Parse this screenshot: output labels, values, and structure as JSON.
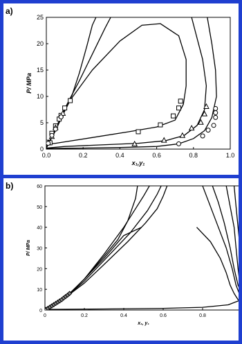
{
  "colors": {
    "frame": "#1f3fd0",
    "line": "#000000",
    "background": "#ffffff"
  },
  "chart_data": [
    {
      "panel": "a)",
      "type": "line",
      "xlabel": "x₁,y₁",
      "ylabel": "P/ MPa",
      "xlim": [
        0,
        1
      ],
      "ylim": [
        0,
        25
      ],
      "xticks": [
        "0.0",
        "0.2",
        "0.4",
        "0.6",
        "0.8",
        "1.0"
      ],
      "yticks": [
        "0",
        "5",
        "10",
        "15",
        "20",
        "25"
      ],
      "grid": false,
      "series": [
        {
          "kind": "line",
          "points": [
            [
              0,
              0.3
            ],
            [
              0.03,
              2.3
            ],
            [
              0.07,
              5.3
            ],
            [
              0.11,
              8.3
            ],
            [
              0.14,
              10.2
            ],
            [
              0.18,
              14.5
            ],
            [
              0.22,
              19.5
            ],
            [
              0.25,
              23.5
            ],
            [
              0.27,
              25
            ]
          ]
        },
        {
          "kind": "line",
          "points": [
            [
              0,
              0.2
            ],
            [
              0.04,
              3.0
            ],
            [
              0.08,
              6.2
            ],
            [
              0.12,
              9.0
            ],
            [
              0.18,
              13.0
            ],
            [
              0.25,
              18.0
            ],
            [
              0.32,
              23.0
            ],
            [
              0.35,
              25
            ]
          ]
        },
        {
          "kind": "line",
          "points": [
            [
              0,
              0.2
            ],
            [
              0.05,
              3.5
            ],
            [
              0.09,
              6.5
            ],
            [
              0.13,
              9.3
            ],
            [
              0.25,
              15.0
            ],
            [
              0.4,
              20.5
            ],
            [
              0.52,
              23.5
            ],
            [
              0.62,
              23.8
            ],
            [
              0.72,
              21.5
            ],
            [
              0.76,
              17.0
            ],
            [
              0.76,
              12.0
            ],
            [
              0.745,
              8.5
            ],
            [
              0.7,
              5.5
            ],
            [
              0.6,
              4.2
            ],
            [
              0.45,
              3.3
            ],
            [
              0.25,
              2.2
            ],
            [
              0.05,
              1.1
            ],
            [
              0,
              0.9
            ]
          ]
        },
        {
          "kind": "line",
          "points": [
            [
              0,
              0.2
            ],
            [
              0.1,
              0.5
            ],
            [
              0.3,
              0.8
            ],
            [
              0.5,
              1.1
            ],
            [
              0.65,
              1.6
            ],
            [
              0.75,
              2.6
            ],
            [
              0.82,
              4.5
            ],
            [
              0.86,
              7.5
            ],
            [
              0.87,
              12.0
            ],
            [
              0.85,
              17.0
            ],
            [
              0.82,
              21.0
            ],
            [
              0.79,
              25
            ]
          ]
        },
        {
          "kind": "line",
          "points": [
            [
              0,
              0.1
            ],
            [
              0.2,
              0.2
            ],
            [
              0.4,
              0.3
            ],
            [
              0.6,
              0.5
            ],
            [
              0.72,
              1.0
            ],
            [
              0.8,
              2.0
            ],
            [
              0.86,
              3.5
            ],
            [
              0.9,
              6.0
            ],
            [
              0.925,
              10.0
            ],
            [
              0.92,
              15.0
            ],
            [
              0.9,
              20.0
            ],
            [
              0.875,
              25
            ]
          ]
        },
        {
          "kind": "squares",
          "points": [
            [
              0.01,
              1.3
            ],
            [
              0.02,
              1.2
            ],
            [
              0.03,
              3.0
            ],
            [
              0.05,
              4.4
            ],
            [
              0.07,
              5.7
            ],
            [
              0.08,
              6.4
            ],
            [
              0.1,
              7.8
            ],
            [
              0.13,
              9.2
            ],
            [
              0.5,
              3.3
            ],
            [
              0.62,
              4.6
            ],
            [
              0.69,
              6.3
            ],
            [
              0.72,
              7.8
            ],
            [
              0.73,
              9.1
            ]
          ]
        },
        {
          "kind": "triangles",
          "points": [
            [
              0.01,
              1.2
            ],
            [
              0.03,
              2.4
            ],
            [
              0.05,
              4.1
            ],
            [
              0.09,
              6.8
            ],
            [
              0.48,
              1.0
            ],
            [
              0.64,
              1.7
            ],
            [
              0.74,
              2.6
            ],
            [
              0.79,
              4.0
            ],
            [
              0.84,
              5.1
            ],
            [
              0.86,
              6.7
            ],
            [
              0.87,
              8.1
            ]
          ]
        },
        {
          "kind": "circles",
          "points": [
            [
              0.01,
              1.1
            ],
            [
              0.03,
              2.6
            ],
            [
              0.05,
              3.8
            ],
            [
              0.08,
              6.1
            ],
            [
              0.72,
              1.0
            ],
            [
              0.85,
              2.5
            ],
            [
              0.88,
              3.6
            ],
            [
              0.91,
              4.5
            ],
            [
              0.92,
              6.0
            ],
            [
              0.92,
              6.9
            ],
            [
              0.92,
              7.7
            ]
          ]
        }
      ]
    },
    {
      "panel": "b)",
      "type": "line",
      "xlabel": "x₁, y₁",
      "ylabel": "P/ MPa",
      "xlim": [
        0,
        1
      ],
      "ylim": [
        0,
        60
      ],
      "xticks": [
        "0",
        "0.2",
        "0.4",
        "0.6",
        "0.8"
      ],
      "yticks": [
        "0",
        "10",
        "20",
        "30",
        "40",
        "50",
        "60"
      ],
      "grid": false,
      "series": [
        {
          "kind": "line",
          "points": [
            [
              0,
              0
            ],
            [
              0.05,
              2.5
            ],
            [
              0.11,
              6.5
            ],
            [
              0.2,
              13
            ],
            [
              0.3,
              22
            ],
            [
              0.42,
              33
            ],
            [
              0.51,
              42
            ],
            [
              0.57,
              49
            ],
            [
              0.6,
              55
            ],
            [
              0.62,
              60
            ]
          ]
        },
        {
          "kind": "line",
          "points": [
            [
              0,
              0
            ],
            [
              0.05,
              2.5
            ],
            [
              0.11,
              6.5
            ],
            [
              0.2,
              14
            ],
            [
              0.3,
              24
            ],
            [
              0.43,
              37
            ],
            [
              0.52,
              48
            ],
            [
              0.57,
              56
            ],
            [
              0.59,
              60
            ]
          ]
        },
        {
          "kind": "line",
          "points": [
            [
              0,
              0
            ],
            [
              0.05,
              2.5
            ],
            [
              0.11,
              6.5
            ],
            [
              0.2,
              15
            ],
            [
              0.3,
              27
            ],
            [
              0.4,
              40
            ],
            [
              0.46,
              49
            ],
            [
              0.5,
              55
            ],
            [
              0.53,
              60
            ]
          ]
        },
        {
          "kind": "line",
          "points": [
            [
              0,
              0
            ],
            [
              0.05,
              2.5
            ],
            [
              0.11,
              6.5
            ],
            [
              0.2,
              15
            ],
            [
              0.3,
              26
            ],
            [
              0.37,
              34
            ],
            [
              0.42,
              43
            ],
            [
              0.46,
              54
            ],
            [
              0.47,
              60
            ]
          ]
        },
        {
          "kind": "line",
          "points": [
            [
              0,
              0
            ],
            [
              0.05,
              2.5
            ],
            [
              0.11,
              6.5
            ],
            [
              0.2,
              15
            ],
            [
              0.3,
              25
            ],
            [
              0.4,
              36
            ],
            [
              0.49,
              40
            ]
          ]
        },
        {
          "kind": "line",
          "points": [
            [
              0,
              0.3
            ],
            [
              0.3,
              0.5
            ],
            [
              0.6,
              0.8
            ],
            [
              0.8,
              1.3
            ],
            [
              0.93,
              2.5
            ],
            [
              0.97,
              4
            ],
            [
              1.0,
              5
            ]
          ]
        },
        {
          "kind": "line",
          "points": [
            [
              0.77,
              40
            ],
            [
              0.84,
              33
            ],
            [
              0.89,
              25
            ],
            [
              0.92,
              18
            ],
            [
              0.94,
              12
            ],
            [
              0.96,
              8
            ],
            [
              0.98,
              5
            ],
            [
              1.0,
              4
            ]
          ]
        },
        {
          "kind": "line",
          "points": [
            [
              0.8,
              60
            ],
            [
              0.84,
              50
            ],
            [
              0.88,
              40
            ],
            [
              0.92,
              30
            ],
            [
              0.95,
              20
            ],
            [
              0.97,
              12
            ],
            [
              0.99,
              7
            ],
            [
              1.0,
              6
            ]
          ]
        },
        {
          "kind": "line",
          "points": [
            [
              0.85,
              60
            ],
            [
              0.88,
              52
            ],
            [
              0.91,
              42
            ],
            [
              0.94,
              30
            ],
            [
              0.96,
              20
            ],
            [
              0.98,
              12
            ],
            [
              1.0,
              8
            ]
          ]
        },
        {
          "kind": "line",
          "points": [
            [
              0.92,
              60
            ],
            [
              0.94,
              50
            ],
            [
              0.96,
              40
            ],
            [
              0.97,
              30
            ],
            [
              0.98,
              20
            ],
            [
              0.99,
              12
            ],
            [
              1.0,
              10
            ]
          ]
        },
        {
          "kind": "line",
          "points": [
            [
              0.96,
              60
            ],
            [
              0.97,
              50
            ],
            [
              0.98,
              40
            ],
            [
              0.99,
              30
            ],
            [
              1.0,
              20
            ]
          ]
        },
        {
          "kind": "diamonds",
          "points": [
            [
              0.005,
              0.3
            ],
            [
              0.015,
              0.8
            ],
            [
              0.025,
              1.4
            ],
            [
              0.035,
              2.0
            ],
            [
              0.045,
              2.6
            ],
            [
              0.055,
              3.2
            ],
            [
              0.065,
              3.8
            ],
            [
              0.075,
              4.4
            ],
            [
              0.085,
              5.0
            ],
            [
              0.095,
              5.8
            ],
            [
              0.105,
              6.5
            ],
            [
              0.115,
              7.2
            ],
            [
              0.125,
              8.0
            ]
          ]
        }
      ]
    }
  ]
}
